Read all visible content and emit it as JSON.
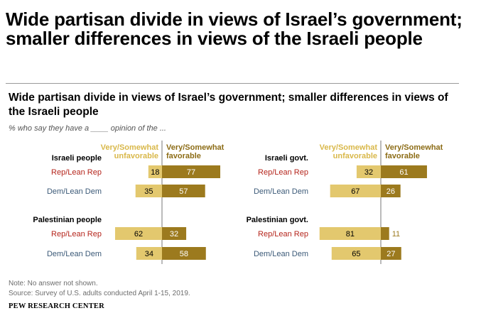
{
  "headline": "Wide partisan divide in views of Israel’s government; smaller differences in views of the Israeli people",
  "colors": {
    "unfavorable": "#e3c86e",
    "favorable": "#9c7a1e",
    "rep": "#b5251c",
    "dem": "#3c5a78",
    "legend_unfav": "#d9b84a",
    "legend_fav": "#8c6c16",
    "text": "#000000",
    "axis": "#555555",
    "footnote": "#6d6d6d"
  },
  "chart_data": {
    "type": "bar",
    "title": "Wide partisan divide in views of Israel’s government; smaller differences in views of the Israeli people",
    "subtitle": "% who say they have a ____ opinion of the ...",
    "legend": {
      "unfavorable": "Very/Somewhat unfavorable",
      "favorable": "Very/Somewhat favorable"
    },
    "panels": [
      {
        "groups": [
          {
            "label": "Israeli people",
            "rows": [
              {
                "label": "Rep/Lean Rep",
                "party": "rep",
                "unfavorable": 18,
                "favorable": 77
              },
              {
                "label": "Dem/Lean Dem",
                "party": "dem",
                "unfavorable": 35,
                "favorable": 57
              }
            ]
          },
          {
            "label": "Palestinian people",
            "rows": [
              {
                "label": "Rep/Lean Rep",
                "party": "rep",
                "unfavorable": 62,
                "favorable": 32
              },
              {
                "label": "Dem/Lean Dem",
                "party": "dem",
                "unfavorable": 34,
                "favorable": 58
              }
            ]
          }
        ]
      },
      {
        "groups": [
          {
            "label": "Israeli govt.",
            "rows": [
              {
                "label": "Rep/Lean Rep",
                "party": "rep",
                "unfavorable": 32,
                "favorable": 61
              },
              {
                "label": "Dem/Lean Dem",
                "party": "dem",
                "unfavorable": 67,
                "favorable": 26
              }
            ]
          },
          {
            "label": "Palestinian govt.",
            "rows": [
              {
                "label": "Rep/Lean Rep",
                "party": "rep",
                "unfavorable": 81,
                "favorable": 11
              },
              {
                "label": "Dem/Lean Dem",
                "party": "dem",
                "unfavorable": 65,
                "favorable": 27
              }
            ]
          }
        ]
      }
    ]
  },
  "footer": {
    "note": "Note: No answer not shown.",
    "source": "Source: Survey of U.S. adults conducted April 1-15, 2019.",
    "brand": "PEW RESEARCH CENTER"
  }
}
